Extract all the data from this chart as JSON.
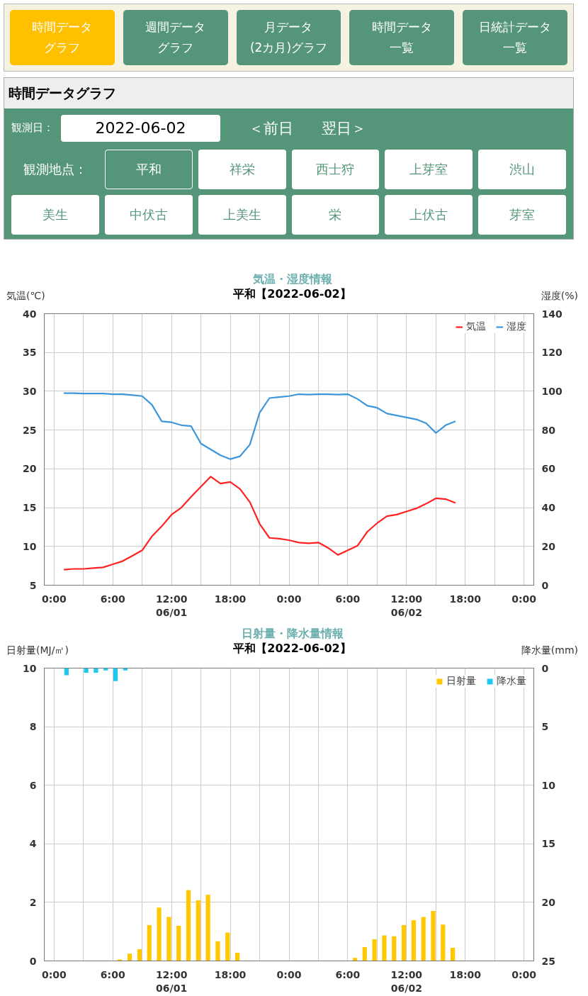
{
  "chart_data": [
    {
      "type": "other",
      "title": "時間データグラフ",
      "annotations": [
        "時間データ",
        "グラフ",
        "週間データ",
        "グラフ",
        "月データ",
        "(2カ月)グラフ",
        "時間データ",
        "一覧",
        "日統計データ",
        "一覧",
        "観測日：",
        "2022-06-02",
        "＜前日",
        "翌日＞",
        "観測地点：",
        "平和",
        "祥栄",
        "西士狩",
        "上芽室",
        "渋山",
        "美生",
        "中伏古",
        "上美生",
        "栄",
        "上伏古",
        "芽室"
      ]
    },
    {
      "type": "line",
      "title": "気温・湿度情報",
      "subtitle": "平和【2022-06-02】",
      "ylabel": "気温(℃)",
      "y2label": "湿度(%)",
      "x": [
        "2022-06-01T01:00",
        "2022-06-01T02:00",
        "2022-06-01T03:00",
        "2022-06-01T04:00",
        "2022-06-01T05:00",
        "2022-06-01T06:00",
        "2022-06-01T07:00",
        "2022-06-01T08:00",
        "2022-06-01T09:00",
        "2022-06-01T10:00",
        "2022-06-01T11:00",
        "2022-06-01T12:00",
        "2022-06-01T13:00",
        "2022-06-01T14:00",
        "2022-06-01T15:00",
        "2022-06-01T16:00",
        "2022-06-01T17:00",
        "2022-06-01T18:00",
        "2022-06-01T19:00",
        "2022-06-01T20:00",
        "2022-06-01T21:00",
        "2022-06-01T22:00",
        "2022-06-01T23:00",
        "2022-06-02T00:00",
        "2022-06-02T01:00",
        "2022-06-02T02:00",
        "2022-06-02T03:00",
        "2022-06-02T04:00",
        "2022-06-02T05:00",
        "2022-06-02T06:00",
        "2022-06-02T07:00",
        "2022-06-02T08:00",
        "2022-06-02T09:00",
        "2022-06-02T10:00",
        "2022-06-02T11:00",
        "2022-06-02T12:00",
        "2022-06-02T13:00",
        "2022-06-02T14:00",
        "2022-06-02T15:00",
        "2022-06-02T16:00",
        "2022-06-02T17:00"
      ],
      "series": [
        {
          "name": "気温",
          "color": "#ff2222",
          "values": [
            7.0,
            7.1,
            7.1,
            7.2,
            7.3,
            7.7,
            8.1,
            8.8,
            9.5,
            11.3,
            12.6,
            14.1,
            15.0,
            16.4,
            17.7,
            19.0,
            18.1,
            18.3,
            17.4,
            15.7,
            12.9,
            11.1,
            11.0,
            10.8,
            10.5,
            10.4,
            10.5,
            9.8,
            8.9,
            9.5,
            10.1,
            11.9,
            13.0,
            13.9,
            14.1,
            14.5,
            14.9,
            15.5,
            16.2,
            16.1,
            15.6
          ]
        },
        {
          "name": "湿度",
          "color": "#3c96dc",
          "axis": "y2",
          "values": [
            99,
            99,
            98.8,
            98.8,
            98.8,
            98.5,
            98.5,
            98,
            97.5,
            93,
            84.5,
            84,
            82.5,
            82,
            73,
            70,
            67,
            65,
            66.5,
            72.5,
            89,
            96.5,
            97,
            97.5,
            98.5,
            98.3,
            98.5,
            98.5,
            98.3,
            98.5,
            96,
            92.5,
            91.5,
            88.5,
            87.5,
            86.5,
            85.5,
            83.5,
            78.5,
            82.5,
            84.5
          ]
        }
      ],
      "xlim": [
        "2022-05-31T23:00",
        "2022-06-03T01:00"
      ],
      "xticks": [
        {
          "value": "2022-06-01T00:00",
          "label": "0:00"
        },
        {
          "value": "2022-06-01T03:00",
          "label": null
        },
        {
          "value": "2022-06-01T06:00",
          "label": "6:00"
        },
        {
          "value": "2022-06-01T09:00",
          "label": null
        },
        {
          "value": "2022-06-01T12:00",
          "label": "12:00\n06/01"
        },
        {
          "value": "2022-06-01T15:00",
          "label": null
        },
        {
          "value": "2022-06-01T18:00",
          "label": "18:00"
        },
        {
          "value": "2022-06-01T21:00",
          "label": null
        },
        {
          "value": "2022-06-02T00:00",
          "label": "0:00"
        },
        {
          "value": "2022-06-02T03:00",
          "label": null
        },
        {
          "value": "2022-06-02T06:00",
          "label": "6:00"
        },
        {
          "value": "2022-06-02T09:00",
          "label": null
        },
        {
          "value": "2022-06-02T12:00",
          "label": "12:00\n06/02"
        },
        {
          "value": "2022-06-02T15:00",
          "label": null
        },
        {
          "value": "2022-06-02T18:00",
          "label": "18:00"
        },
        {
          "value": "2022-06-02T21:00",
          "label": null
        },
        {
          "value": "2022-06-03T00:00",
          "label": "0:00"
        }
      ],
      "ylim": [
        5,
        40
      ],
      "yticks": [
        5,
        10,
        15,
        20,
        25,
        30,
        35,
        40
      ],
      "y2lim": [
        0,
        140
      ],
      "y2ticks": [
        0,
        20,
        40,
        60,
        80,
        100,
        120,
        140
      ],
      "grid": true,
      "legend": "top right"
    },
    {
      "type": "bar",
      "title": "日射量・降水量情報",
      "subtitle": "平和【2022-06-02】",
      "ylabel": "日射量(MJ/㎡)",
      "y2label": "降水量(mm)",
      "x": [
        "2022-06-01T01:00",
        "2022-06-01T02:00",
        "2022-06-01T03:00",
        "2022-06-01T04:00",
        "2022-06-01T05:00",
        "2022-06-01T06:00",
        "2022-06-01T07:00",
        "2022-06-01T08:00",
        "2022-06-01T09:00",
        "2022-06-01T10:00",
        "2022-06-01T11:00",
        "2022-06-01T12:00",
        "2022-06-01T13:00",
        "2022-06-01T14:00",
        "2022-06-01T15:00",
        "2022-06-01T16:00",
        "2022-06-01T17:00",
        "2022-06-01T18:00",
        "2022-06-01T19:00",
        "2022-06-01T20:00",
        "2022-06-01T21:00",
        "2022-06-01T22:00",
        "2022-06-01T23:00",
        "2022-06-02T00:00",
        "2022-06-02T01:00",
        "2022-06-02T02:00",
        "2022-06-02T03:00",
        "2022-06-02T04:00",
        "2022-06-02T05:00",
        "2022-06-02T06:00",
        "2022-06-02T07:00",
        "2022-06-02T08:00",
        "2022-06-02T09:00",
        "2022-06-02T10:00",
        "2022-06-02T11:00",
        "2022-06-02T12:00",
        "2022-06-02T13:00",
        "2022-06-02T14:00",
        "2022-06-02T15:00",
        "2022-06-02T16:00",
        "2022-06-02T17:00"
      ],
      "series": [
        {
          "name": "日射量",
          "color": "#ffc800",
          "values": [
            null,
            null,
            null,
            null,
            null,
            null,
            0.05,
            0.25,
            0.4,
            1.22,
            1.82,
            1.5,
            1.2,
            2.42,
            2.07,
            2.26,
            0.67,
            0.97,
            0.28,
            null,
            null,
            null,
            null,
            null,
            null,
            null,
            null,
            null,
            null,
            null,
            0.1,
            0.47,
            0.74,
            0.87,
            0.84,
            1.22,
            1.39,
            1.5,
            1.71,
            1.24,
            0.45
          ]
        },
        {
          "name": "降水量",
          "color": "#1ec8f0",
          "axis": "y2",
          "values": [
            0.6,
            null,
            0.4,
            0.4,
            0.2,
            1.1,
            0.2,
            null,
            null,
            null,
            null,
            null,
            null,
            null,
            null,
            null,
            null,
            null,
            null,
            null,
            null,
            null,
            null,
            null,
            null,
            null,
            null,
            null,
            null,
            null,
            null,
            null,
            null,
            null,
            null,
            null,
            null,
            null,
            null,
            null,
            null
          ]
        }
      ],
      "xlim": [
        "2022-05-31T23:00",
        "2022-06-03T01:00"
      ],
      "xticks": [
        {
          "value": "2022-06-01T00:00",
          "label": "0:00"
        },
        {
          "value": "2022-06-01T03:00",
          "label": null
        },
        {
          "value": "2022-06-01T06:00",
          "label": "6:00"
        },
        {
          "value": "2022-06-01T09:00",
          "label": null
        },
        {
          "value": "2022-06-01T12:00",
          "label": "12:00\n06/01"
        },
        {
          "value": "2022-06-01T15:00",
          "label": null
        },
        {
          "value": "2022-06-01T18:00",
          "label": "18:00"
        },
        {
          "value": "2022-06-01T21:00",
          "label": null
        },
        {
          "value": "2022-06-02T00:00",
          "label": "0:00"
        },
        {
          "value": "2022-06-02T03:00",
          "label": null
        },
        {
          "value": "2022-06-02T06:00",
          "label": "6:00"
        },
        {
          "value": "2022-06-02T09:00",
          "label": null
        },
        {
          "value": "2022-06-02T12:00",
          "label": "12:00\n06/02"
        },
        {
          "value": "2022-06-02T15:00",
          "label": null
        },
        {
          "value": "2022-06-02T18:00",
          "label": "18:00"
        },
        {
          "value": "2022-06-02T21:00",
          "label": null
        },
        {
          "value": "2022-06-03T00:00",
          "label": "0:00"
        }
      ],
      "ylim": [
        0,
        10
      ],
      "yticks": [
        0,
        2,
        4,
        6,
        8,
        10
      ],
      "y2lim": [
        25,
        0
      ],
      "y2ticks": [
        0,
        5,
        10,
        15,
        20,
        25
      ],
      "grid": true,
      "legend": "top right"
    }
  ]
}
